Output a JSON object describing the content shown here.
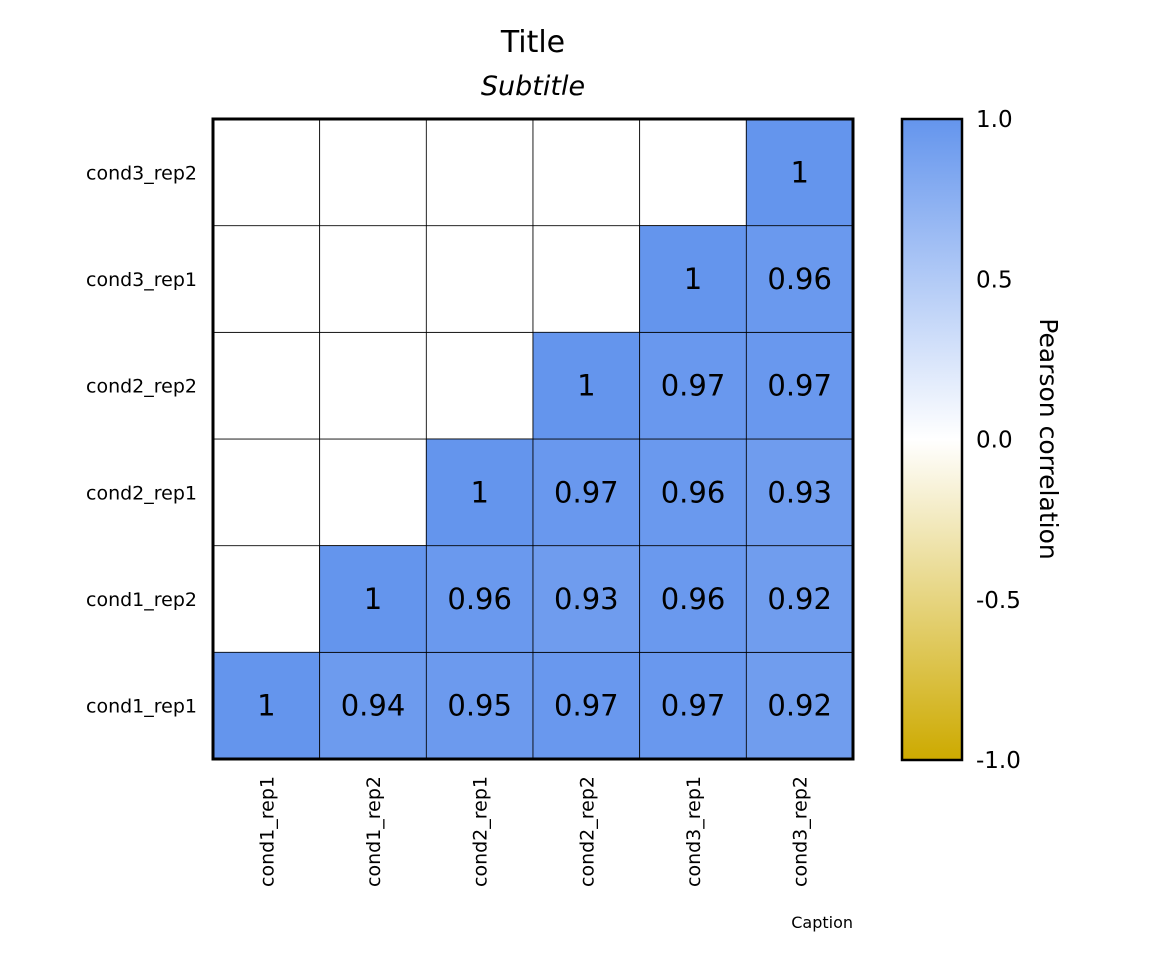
{
  "chart_data": {
    "type": "heatmap",
    "title": "Title",
    "subtitle": "Subtitle",
    "caption": "Caption",
    "x_categories": [
      "cond1_rep1",
      "cond1_rep2",
      "cond2_rep1",
      "cond2_rep2",
      "cond3_rep1",
      "cond3_rep2"
    ],
    "y_categories": [
      "cond1_rep1",
      "cond1_rep2",
      "cond2_rep1",
      "cond2_rep2",
      "cond3_rep1",
      "cond3_rep2"
    ],
    "cells": [
      {
        "x": "cond1_rep1",
        "y": "cond1_rep1",
        "value": 1,
        "label": "1"
      },
      {
        "x": "cond1_rep2",
        "y": "cond1_rep1",
        "value": 0.94,
        "label": "0.94"
      },
      {
        "x": "cond2_rep1",
        "y": "cond1_rep1",
        "value": 0.95,
        "label": "0.95"
      },
      {
        "x": "cond2_rep2",
        "y": "cond1_rep1",
        "value": 0.97,
        "label": "0.97"
      },
      {
        "x": "cond3_rep1",
        "y": "cond1_rep1",
        "value": 0.97,
        "label": "0.97"
      },
      {
        "x": "cond3_rep2",
        "y": "cond1_rep1",
        "value": 0.92,
        "label": "0.92"
      },
      {
        "x": "cond1_rep2",
        "y": "cond1_rep2",
        "value": 1,
        "label": "1"
      },
      {
        "x": "cond2_rep1",
        "y": "cond1_rep2",
        "value": 0.96,
        "label": "0.96"
      },
      {
        "x": "cond2_rep2",
        "y": "cond1_rep2",
        "value": 0.93,
        "label": "0.93"
      },
      {
        "x": "cond3_rep1",
        "y": "cond1_rep2",
        "value": 0.96,
        "label": "0.96"
      },
      {
        "x": "cond3_rep2",
        "y": "cond1_rep2",
        "value": 0.92,
        "label": "0.92"
      },
      {
        "x": "cond2_rep1",
        "y": "cond2_rep1",
        "value": 1,
        "label": "1"
      },
      {
        "x": "cond2_rep2",
        "y": "cond2_rep1",
        "value": 0.97,
        "label": "0.97"
      },
      {
        "x": "cond3_rep1",
        "y": "cond2_rep1",
        "value": 0.96,
        "label": "0.96"
      },
      {
        "x": "cond3_rep2",
        "y": "cond2_rep1",
        "value": 0.93,
        "label": "0.93"
      },
      {
        "x": "cond2_rep2",
        "y": "cond2_rep2",
        "value": 1,
        "label": "1"
      },
      {
        "x": "cond3_rep1",
        "y": "cond2_rep2",
        "value": 0.97,
        "label": "0.97"
      },
      {
        "x": "cond3_rep2",
        "y": "cond2_rep2",
        "value": 0.97,
        "label": "0.97"
      },
      {
        "x": "cond3_rep1",
        "y": "cond3_rep1",
        "value": 1,
        "label": "1"
      },
      {
        "x": "cond3_rep2",
        "y": "cond3_rep1",
        "value": 0.96,
        "label": "0.96"
      },
      {
        "x": "cond3_rep2",
        "y": "cond3_rep2",
        "value": 1,
        "label": "1"
      }
    ],
    "legend": {
      "title": "Pearson correlation",
      "range": [
        -1.0,
        1.0
      ],
      "ticks": [
        {
          "value": 1.0,
          "label": "1.0"
        },
        {
          "value": 0.5,
          "label": "0.5"
        },
        {
          "value": 0.0,
          "label": "0.0"
        },
        {
          "value": -0.5,
          "label": "-0.5"
        },
        {
          "value": -1.0,
          "label": "-1.0"
        }
      ],
      "colors": {
        "high": "#6495ed",
        "mid": "#ffffff",
        "low": "#cdaa00"
      },
      "placement": "right"
    },
    "empty_cell_color": "#ffffff",
    "grid": true
  }
}
